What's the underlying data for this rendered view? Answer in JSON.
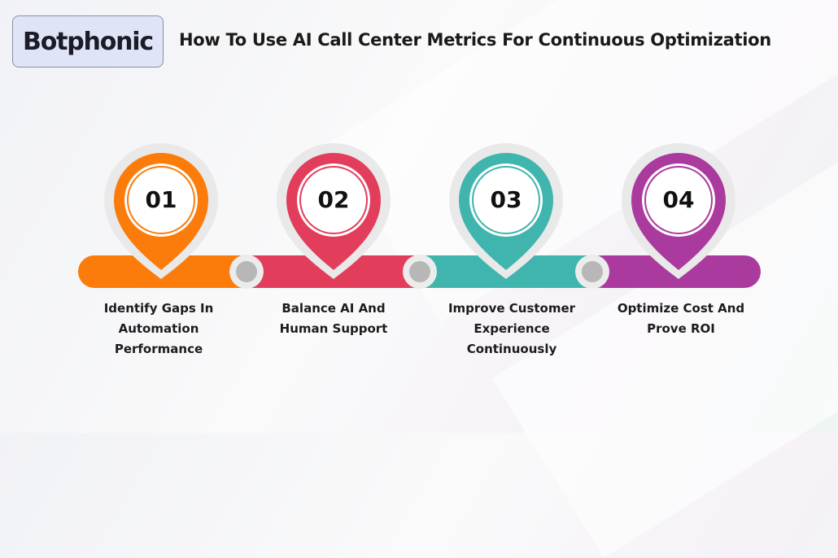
{
  "brand": {
    "logo_text": "Botphonic"
  },
  "title": "How To Use AI Call Center Metrics For Continuous Optimization",
  "colors": {
    "orange": "#fb7c0a",
    "red": "#e33d5c",
    "teal": "#3fb5ad",
    "purple": "#ab3a9e",
    "connector": "#b7b7b7"
  },
  "steps": [
    {
      "number": "01",
      "label_lines": [
        "Identify Gaps In",
        "Automation",
        "Performance"
      ],
      "color": "#fb7c0a"
    },
    {
      "number": "02",
      "label_lines": [
        "Balance AI And",
        "Human Support"
      ],
      "color": "#e33d5c"
    },
    {
      "number": "03",
      "label_lines": [
        "Improve Customer",
        "Experience",
        "Continuously"
      ],
      "color": "#3fb5ad"
    },
    {
      "number": "04",
      "label_lines": [
        "Optimize Cost And",
        "Prove ROI"
      ],
      "color": "#ab3a9e"
    }
  ]
}
